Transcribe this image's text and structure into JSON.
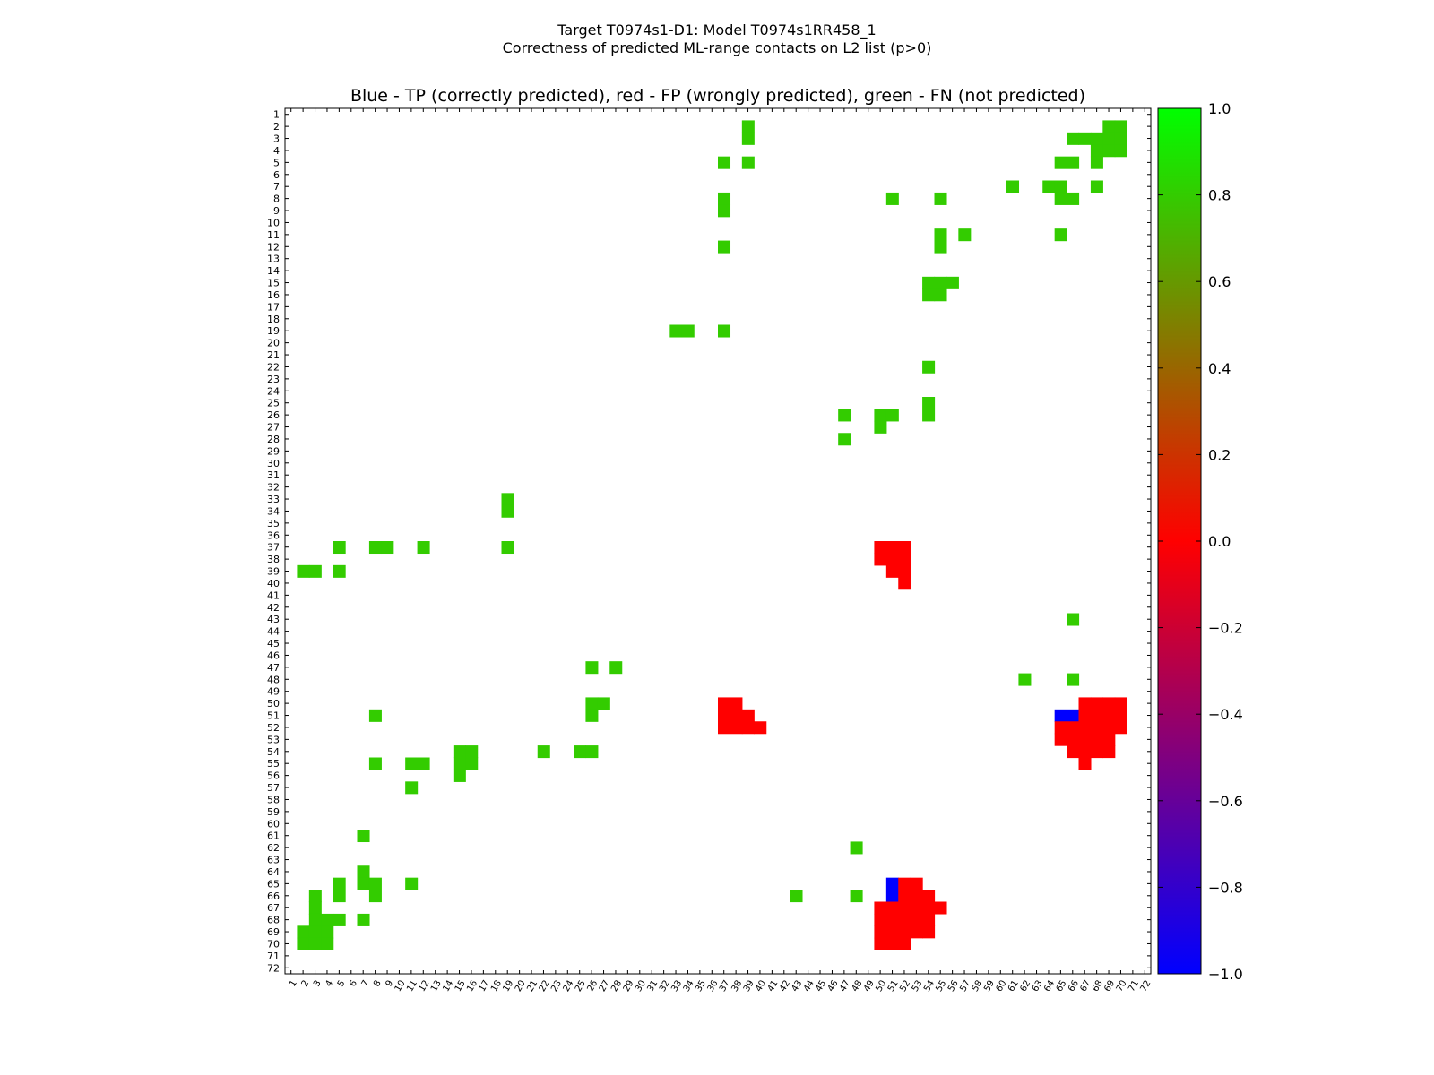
{
  "figure": {
    "suptitle_line1": "Target T0974s1-D1: Model T0974s1RR458_1",
    "suptitle_line2": "Correctness of predicted ML-range contacts on L2 list (p>0)"
  },
  "chart_data": {
    "type": "heatmap",
    "title": "Blue - TP (correctly predicted), red - FP (wrongly predicted), green - FN (not predicted)",
    "xlabel": "",
    "ylabel": "",
    "x_range": [
      1,
      72
    ],
    "y_range": [
      1,
      72
    ],
    "y_axis_inverted": true,
    "x_tick_labels": [
      "1",
      "2",
      "3",
      "4",
      "5",
      "6",
      "7",
      "8",
      "9",
      "10",
      "11",
      "12",
      "13",
      "14",
      "15",
      "16",
      "17",
      "18",
      "19",
      "20",
      "21",
      "22",
      "23",
      "24",
      "25",
      "26",
      "27",
      "28",
      "29",
      "30",
      "31",
      "32",
      "33",
      "34",
      "35",
      "36",
      "37",
      "38",
      "39",
      "40",
      "41",
      "42",
      "43",
      "44",
      "45",
      "46",
      "47",
      "48",
      "49",
      "50",
      "51",
      "52",
      "53",
      "54",
      "55",
      "56",
      "57",
      "58",
      "59",
      "60",
      "61",
      "62",
      "63",
      "64",
      "65",
      "66",
      "67",
      "68",
      "69",
      "70",
      "71",
      "72"
    ],
    "y_tick_labels": [
      "1",
      "2",
      "3",
      "4",
      "5",
      "6",
      "7",
      "8",
      "9",
      "10",
      "11",
      "12",
      "13",
      "14",
      "15",
      "16",
      "17",
      "18",
      "19",
      "20",
      "21",
      "22",
      "23",
      "24",
      "25",
      "26",
      "27",
      "28",
      "29",
      "30",
      "31",
      "32",
      "33",
      "34",
      "35",
      "36",
      "37",
      "38",
      "39",
      "40",
      "41",
      "42",
      "43",
      "44",
      "45",
      "46",
      "47",
      "48",
      "49",
      "50",
      "51",
      "52",
      "53",
      "54",
      "55",
      "56",
      "57",
      "58",
      "59",
      "60",
      "61",
      "62",
      "63",
      "64",
      "65",
      "66",
      "67",
      "68",
      "69",
      "70",
      "71",
      "72"
    ],
    "grid": false,
    "value_meaning": {
      "1": "FN (not predicted)",
      "0": "FP (wrongly predicted)",
      "-1": "TP (correctly predicted)"
    },
    "colors": {
      "fn": "#33cc00",
      "fp": "#ff0000",
      "tp": "#0000ff"
    },
    "colorbar": {
      "range": [
        -1.0,
        1.0
      ],
      "tick_labels": [
        "1.0",
        "0.8",
        "0.6",
        "0.4",
        "0.2",
        "0.0",
        "−0.2",
        "−0.4",
        "−0.6",
        "−0.8",
        "−1.0"
      ],
      "tick_values": [
        1.0,
        0.8,
        0.6,
        0.4,
        0.2,
        0.0,
        -0.2,
        -0.4,
        -0.6,
        -0.8,
        -1.0
      ],
      "gradient": [
        "#0000ff",
        "#ff0000",
        "#00ff00"
      ]
    },
    "cells": [
      {
        "x": 39,
        "y": 2,
        "v": 1
      },
      {
        "x": 69,
        "y": 2,
        "v": 1
      },
      {
        "x": 70,
        "y": 2,
        "v": 1
      },
      {
        "x": 39,
        "y": 3,
        "v": 1
      },
      {
        "x": 66,
        "y": 3,
        "v": 1
      },
      {
        "x": 67,
        "y": 3,
        "v": 1
      },
      {
        "x": 68,
        "y": 3,
        "v": 1
      },
      {
        "x": 69,
        "y": 3,
        "v": 1
      },
      {
        "x": 70,
        "y": 3,
        "v": 1
      },
      {
        "x": 68,
        "y": 4,
        "v": 1
      },
      {
        "x": 69,
        "y": 4,
        "v": 1
      },
      {
        "x": 70,
        "y": 4,
        "v": 1
      },
      {
        "x": 37,
        "y": 5,
        "v": 1
      },
      {
        "x": 39,
        "y": 5,
        "v": 1
      },
      {
        "x": 65,
        "y": 5,
        "v": 1
      },
      {
        "x": 66,
        "y": 5,
        "v": 1
      },
      {
        "x": 68,
        "y": 5,
        "v": 1
      },
      {
        "x": 61,
        "y": 7,
        "v": 1
      },
      {
        "x": 64,
        "y": 7,
        "v": 1
      },
      {
        "x": 65,
        "y": 7,
        "v": 1
      },
      {
        "x": 68,
        "y": 7,
        "v": 1
      },
      {
        "x": 37,
        "y": 8,
        "v": 1
      },
      {
        "x": 51,
        "y": 8,
        "v": 1
      },
      {
        "x": 55,
        "y": 8,
        "v": 1
      },
      {
        "x": 65,
        "y": 8,
        "v": 1
      },
      {
        "x": 66,
        "y": 8,
        "v": 1
      },
      {
        "x": 37,
        "y": 9,
        "v": 1
      },
      {
        "x": 55,
        "y": 11,
        "v": 1
      },
      {
        "x": 57,
        "y": 11,
        "v": 1
      },
      {
        "x": 65,
        "y": 11,
        "v": 1
      },
      {
        "x": 37,
        "y": 12,
        "v": 1
      },
      {
        "x": 55,
        "y": 12,
        "v": 1
      },
      {
        "x": 54,
        "y": 15,
        "v": 1
      },
      {
        "x": 55,
        "y": 15,
        "v": 1
      },
      {
        "x": 56,
        "y": 15,
        "v": 1
      },
      {
        "x": 54,
        "y": 16,
        "v": 1
      },
      {
        "x": 55,
        "y": 16,
        "v": 1
      },
      {
        "x": 33,
        "y": 19,
        "v": 1
      },
      {
        "x": 34,
        "y": 19,
        "v": 1
      },
      {
        "x": 37,
        "y": 19,
        "v": 1
      },
      {
        "x": 54,
        "y": 22,
        "v": 1
      },
      {
        "x": 54,
        "y": 25,
        "v": 1
      },
      {
        "x": 47,
        "y": 26,
        "v": 1
      },
      {
        "x": 50,
        "y": 26,
        "v": 1
      },
      {
        "x": 51,
        "y": 26,
        "v": 1
      },
      {
        "x": 54,
        "y": 26,
        "v": 1
      },
      {
        "x": 50,
        "y": 27,
        "v": 1
      },
      {
        "x": 47,
        "y": 28,
        "v": 1
      },
      {
        "x": 19,
        "y": 33,
        "v": 1
      },
      {
        "x": 19,
        "y": 34,
        "v": 1
      },
      {
        "x": 5,
        "y": 37,
        "v": 1
      },
      {
        "x": 8,
        "y": 37,
        "v": 1
      },
      {
        "x": 9,
        "y": 37,
        "v": 1
      },
      {
        "x": 12,
        "y": 37,
        "v": 1
      },
      {
        "x": 19,
        "y": 37,
        "v": 1
      },
      {
        "x": 50,
        "y": 37,
        "v": 0
      },
      {
        "x": 51,
        "y": 37,
        "v": 0
      },
      {
        "x": 52,
        "y": 37,
        "v": 0
      },
      {
        "x": 50,
        "y": 38,
        "v": 0
      },
      {
        "x": 51,
        "y": 38,
        "v": 0
      },
      {
        "x": 52,
        "y": 38,
        "v": 0
      },
      {
        "x": 2,
        "y": 39,
        "v": 1
      },
      {
        "x": 3,
        "y": 39,
        "v": 1
      },
      {
        "x": 5,
        "y": 39,
        "v": 1
      },
      {
        "x": 51,
        "y": 39,
        "v": 0
      },
      {
        "x": 52,
        "y": 39,
        "v": 0
      },
      {
        "x": 52,
        "y": 40,
        "v": 0
      },
      {
        "x": 66,
        "y": 43,
        "v": 1
      },
      {
        "x": 26,
        "y": 47,
        "v": 1
      },
      {
        "x": 28,
        "y": 47,
        "v": 1
      },
      {
        "x": 62,
        "y": 48,
        "v": 1
      },
      {
        "x": 66,
        "y": 48,
        "v": 1
      },
      {
        "x": 26,
        "y": 50,
        "v": 1
      },
      {
        "x": 27,
        "y": 50,
        "v": 1
      },
      {
        "x": 37,
        "y": 50,
        "v": 0
      },
      {
        "x": 38,
        "y": 50,
        "v": 0
      },
      {
        "x": 67,
        "y": 50,
        "v": 0
      },
      {
        "x": 68,
        "y": 50,
        "v": 0
      },
      {
        "x": 69,
        "y": 50,
        "v": 0
      },
      {
        "x": 70,
        "y": 50,
        "v": 0
      },
      {
        "x": 8,
        "y": 51,
        "v": 1
      },
      {
        "x": 26,
        "y": 51,
        "v": 1
      },
      {
        "x": 37,
        "y": 51,
        "v": 0
      },
      {
        "x": 38,
        "y": 51,
        "v": 0
      },
      {
        "x": 39,
        "y": 51,
        "v": 0
      },
      {
        "x": 65,
        "y": 51,
        "v": -1
      },
      {
        "x": 66,
        "y": 51,
        "v": -1
      },
      {
        "x": 67,
        "y": 51,
        "v": 0
      },
      {
        "x": 68,
        "y": 51,
        "v": 0
      },
      {
        "x": 69,
        "y": 51,
        "v": 0
      },
      {
        "x": 70,
        "y": 51,
        "v": 0
      },
      {
        "x": 37,
        "y": 52,
        "v": 0
      },
      {
        "x": 38,
        "y": 52,
        "v": 0
      },
      {
        "x": 39,
        "y": 52,
        "v": 0
      },
      {
        "x": 40,
        "y": 52,
        "v": 0
      },
      {
        "x": 65,
        "y": 52,
        "v": 0
      },
      {
        "x": 66,
        "y": 52,
        "v": 0
      },
      {
        "x": 67,
        "y": 52,
        "v": 0
      },
      {
        "x": 68,
        "y": 52,
        "v": 0
      },
      {
        "x": 69,
        "y": 52,
        "v": 0
      },
      {
        "x": 70,
        "y": 52,
        "v": 0
      },
      {
        "x": 65,
        "y": 53,
        "v": 0
      },
      {
        "x": 66,
        "y": 53,
        "v": 0
      },
      {
        "x": 67,
        "y": 53,
        "v": 0
      },
      {
        "x": 68,
        "y": 53,
        "v": 0
      },
      {
        "x": 69,
        "y": 53,
        "v": 0
      },
      {
        "x": 15,
        "y": 54,
        "v": 1
      },
      {
        "x": 16,
        "y": 54,
        "v": 1
      },
      {
        "x": 22,
        "y": 54,
        "v": 1
      },
      {
        "x": 25,
        "y": 54,
        "v": 1
      },
      {
        "x": 26,
        "y": 54,
        "v": 1
      },
      {
        "x": 66,
        "y": 54,
        "v": 0
      },
      {
        "x": 67,
        "y": 54,
        "v": 0
      },
      {
        "x": 68,
        "y": 54,
        "v": 0
      },
      {
        "x": 69,
        "y": 54,
        "v": 0
      },
      {
        "x": 8,
        "y": 55,
        "v": 1
      },
      {
        "x": 11,
        "y": 55,
        "v": 1
      },
      {
        "x": 12,
        "y": 55,
        "v": 1
      },
      {
        "x": 15,
        "y": 55,
        "v": 1
      },
      {
        "x": 16,
        "y": 55,
        "v": 1
      },
      {
        "x": 67,
        "y": 55,
        "v": 0
      },
      {
        "x": 15,
        "y": 56,
        "v": 1
      },
      {
        "x": 11,
        "y": 57,
        "v": 1
      },
      {
        "x": 7,
        "y": 61,
        "v": 1
      },
      {
        "x": 48,
        "y": 62,
        "v": 1
      },
      {
        "x": 7,
        "y": 64,
        "v": 1
      },
      {
        "x": 5,
        "y": 65,
        "v": 1
      },
      {
        "x": 7,
        "y": 65,
        "v": 1
      },
      {
        "x": 8,
        "y": 65,
        "v": 1
      },
      {
        "x": 11,
        "y": 65,
        "v": 1
      },
      {
        "x": 51,
        "y": 65,
        "v": -1
      },
      {
        "x": 52,
        "y": 65,
        "v": 0
      },
      {
        "x": 53,
        "y": 65,
        "v": 0
      },
      {
        "x": 3,
        "y": 66,
        "v": 1
      },
      {
        "x": 5,
        "y": 66,
        "v": 1
      },
      {
        "x": 8,
        "y": 66,
        "v": 1
      },
      {
        "x": 43,
        "y": 66,
        "v": 1
      },
      {
        "x": 48,
        "y": 66,
        "v": 1
      },
      {
        "x": 51,
        "y": 66,
        "v": -1
      },
      {
        "x": 52,
        "y": 66,
        "v": 0
      },
      {
        "x": 53,
        "y": 66,
        "v": 0
      },
      {
        "x": 54,
        "y": 66,
        "v": 0
      },
      {
        "x": 3,
        "y": 67,
        "v": 1
      },
      {
        "x": 50,
        "y": 67,
        "v": 0
      },
      {
        "x": 51,
        "y": 67,
        "v": 0
      },
      {
        "x": 52,
        "y": 67,
        "v": 0
      },
      {
        "x": 53,
        "y": 67,
        "v": 0
      },
      {
        "x": 54,
        "y": 67,
        "v": 0
      },
      {
        "x": 55,
        "y": 67,
        "v": 0
      },
      {
        "x": 3,
        "y": 68,
        "v": 1
      },
      {
        "x": 4,
        "y": 68,
        "v": 1
      },
      {
        "x": 5,
        "y": 68,
        "v": 1
      },
      {
        "x": 7,
        "y": 68,
        "v": 1
      },
      {
        "x": 50,
        "y": 68,
        "v": 0
      },
      {
        "x": 51,
        "y": 68,
        "v": 0
      },
      {
        "x": 52,
        "y": 68,
        "v": 0
      },
      {
        "x": 53,
        "y": 68,
        "v": 0
      },
      {
        "x": 54,
        "y": 68,
        "v": 0
      },
      {
        "x": 2,
        "y": 69,
        "v": 1
      },
      {
        "x": 3,
        "y": 69,
        "v": 1
      },
      {
        "x": 4,
        "y": 69,
        "v": 1
      },
      {
        "x": 50,
        "y": 69,
        "v": 0
      },
      {
        "x": 51,
        "y": 69,
        "v": 0
      },
      {
        "x": 52,
        "y": 69,
        "v": 0
      },
      {
        "x": 53,
        "y": 69,
        "v": 0
      },
      {
        "x": 54,
        "y": 69,
        "v": 0
      },
      {
        "x": 2,
        "y": 70,
        "v": 1
      },
      {
        "x": 3,
        "y": 70,
        "v": 1
      },
      {
        "x": 4,
        "y": 70,
        "v": 1
      },
      {
        "x": 50,
        "y": 70,
        "v": 0
      },
      {
        "x": 51,
        "y": 70,
        "v": 0
      },
      {
        "x": 52,
        "y": 70,
        "v": 0
      }
    ]
  }
}
